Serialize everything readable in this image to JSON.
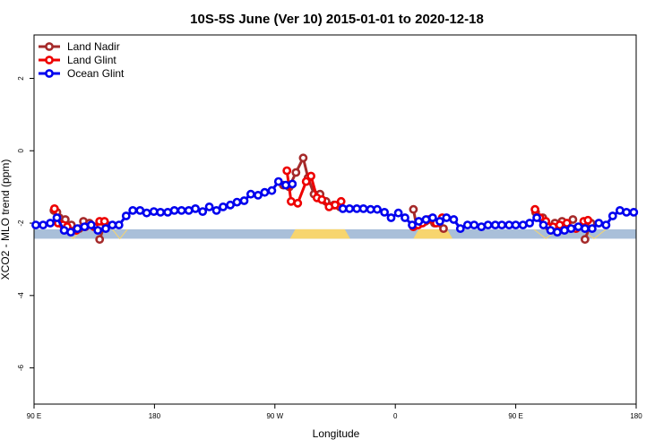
{
  "chart_data": {
    "type": "line",
    "title": "10S-5S June (Ver 10)   2015-01-01 to 2020-12-18",
    "xlabel": "Longitude",
    "ylabel": "XCO2 - MLO trend (ppm)",
    "xlim": [
      0,
      100
    ],
    "ylim": [
      -7,
      3.2
    ],
    "x_ticks": [
      {
        "x": 0,
        "label": "90 E"
      },
      {
        "x": 20,
        "label": "180"
      },
      {
        "x": 40,
        "label": "90 W"
      },
      {
        "x": 60,
        "label": "0"
      },
      {
        "x": 80,
        "label": "90 E"
      },
      {
        "x": 100,
        "label": "180"
      }
    ],
    "y_ticks": [
      2,
      0,
      -2,
      -4,
      -6
    ],
    "legend_position": "top-left",
    "background_band": {
      "y_center": -2.3,
      "half_height": 0.13,
      "ocean_color": "#a9bfd9",
      "land_color": "#f7d56e",
      "land_segments": [
        [
          42.5,
          52.5
        ],
        [
          63,
          69.5
        ]
      ],
      "lake_segments": [
        [
          5,
          8
        ],
        [
          13,
          15.5
        ],
        [
          83,
          87
        ],
        [
          91,
          95
        ]
      ]
    },
    "series": [
      {
        "name": "Land Nadir",
        "color": "#a52a2a",
        "segments": [
          [
            [
              3.3,
              -1.65
            ],
            [
              3.8,
              -1.7
            ],
            [
              4.2,
              -1.85
            ],
            [
              5.2,
              -1.9
            ],
            [
              6.2,
              -2.05
            ],
            [
              7.5,
              -2.15
            ],
            [
              8.2,
              -1.95
            ],
            [
              9.2,
              -2.0
            ]
          ],
          [
            [
              10.9,
              -2.45
            ],
            [
              11.8,
              -2.0
            ]
          ],
          [
            [
              41.4,
              -0.95
            ],
            [
              42.4,
              -1.0
            ],
            [
              43.5,
              -0.6
            ],
            [
              44.7,
              -0.2
            ],
            [
              45.5,
              -0.75
            ],
            [
              46.5,
              -1.2
            ],
            [
              47.5,
              -1.2
            ],
            [
              48.5,
              -1.4
            ],
            [
              49.8,
              -1.5
            ],
            [
              50.8,
              -1.55
            ]
          ],
          [
            [
              63.0,
              -1.62
            ],
            [
              63.5,
              -2.05
            ],
            [
              65.0,
              -1.95
            ],
            [
              66.5,
              -2.0
            ],
            [
              68.0,
              -2.15
            ]
          ],
          [
            [
              83.3,
              -1.7
            ],
            [
              84.5,
              -1.85
            ],
            [
              85.5,
              -2.1
            ],
            [
              86.5,
              -2.0
            ],
            [
              87.7,
              -1.95
            ],
            [
              88.6,
              -2.1
            ],
            [
              89.5,
              -1.9
            ]
          ],
          [
            [
              91.5,
              -2.45
            ],
            [
              92.5,
              -2.0
            ]
          ]
        ]
      },
      {
        "name": "Land Glint",
        "color": "#ee0000",
        "segments": [
          [
            [
              3.4,
              -1.6
            ],
            [
              4.0,
              -2.0
            ],
            [
              4.8,
              -2.05
            ],
            [
              5.5,
              -2.1
            ],
            [
              7.0,
              -2.2
            ],
            [
              8.5,
              -2.1
            ],
            [
              10.0,
              -2.1
            ]
          ],
          [
            [
              10.9,
              -1.95
            ],
            [
              11.7,
              -1.95
            ]
          ],
          [
            [
              42.0,
              -0.55
            ],
            [
              42.7,
              -1.4
            ],
            [
              43.8,
              -1.45
            ],
            [
              45.2,
              -0.85
            ],
            [
              46.0,
              -0.7
            ],
            [
              47.0,
              -1.3
            ],
            [
              47.8,
              -1.35
            ],
            [
              49.0,
              -1.55
            ],
            [
              50.0,
              -1.5
            ],
            [
              51.0,
              -1.4
            ]
          ],
          [
            [
              63.0,
              -2.1
            ],
            [
              63.8,
              -2.05
            ],
            [
              64.5,
              -2.0
            ],
            [
              65.5,
              -1.9
            ],
            [
              66.8,
              -2.0
            ],
            [
              67.8,
              -1.85
            ]
          ],
          [
            [
              83.2,
              -1.62
            ],
            [
              84.0,
              -1.85
            ],
            [
              85.0,
              -1.95
            ],
            [
              86.2,
              -2.1
            ],
            [
              87.3,
              -2.05
            ],
            [
              88.5,
              -2.0
            ],
            [
              90.0,
              -2.15
            ]
          ],
          [
            [
              91.3,
              -1.95
            ],
            [
              92.0,
              -1.92
            ]
          ]
        ]
      },
      {
        "name": "Ocean Glint",
        "color": "#0000ee",
        "segments": [
          [
            [
              0.3,
              -2.05
            ],
            [
              1.5,
              -2.05
            ],
            [
              2.7,
              -2.0
            ],
            [
              3.8,
              -1.85
            ],
            [
              5.0,
              -2.2
            ],
            [
              6.1,
              -2.25
            ],
            [
              7.2,
              -2.15
            ],
            [
              8.4,
              -2.1
            ],
            [
              9.5,
              -2.05
            ],
            [
              10.6,
              -2.2
            ],
            [
              11.9,
              -2.15
            ],
            [
              13.0,
              -2.05
            ],
            [
              14.1,
              -2.05
            ],
            [
              15.3,
              -1.8
            ],
            [
              16.4,
              -1.65
            ],
            [
              17.6,
              -1.65
            ],
            [
              18.7,
              -1.72
            ],
            [
              19.9,
              -1.68
            ],
            [
              21.0,
              -1.7
            ],
            [
              22.2,
              -1.7
            ],
            [
              23.3,
              -1.65
            ],
            [
              24.5,
              -1.65
            ],
            [
              25.7,
              -1.65
            ],
            [
              26.8,
              -1.6
            ],
            [
              28.0,
              -1.68
            ],
            [
              29.1,
              -1.55
            ],
            [
              30.3,
              -1.65
            ],
            [
              31.4,
              -1.55
            ],
            [
              32.6,
              -1.5
            ],
            [
              33.7,
              -1.42
            ],
            [
              34.9,
              -1.38
            ],
            [
              36.0,
              -1.2
            ],
            [
              37.2,
              -1.23
            ],
            [
              38.3,
              -1.15
            ],
            [
              39.5,
              -1.1
            ],
            [
              40.6,
              -0.85
            ],
            [
              41.8,
              -0.95
            ],
            [
              42.9,
              -0.92
            ]
          ],
          [
            [
              51.3,
              -1.6
            ],
            [
              52.4,
              -1.6
            ],
            [
              53.6,
              -1.6
            ],
            [
              54.7,
              -1.6
            ],
            [
              55.9,
              -1.62
            ],
            [
              57.0,
              -1.62
            ],
            [
              58.2,
              -1.7
            ],
            [
              59.3,
              -1.85
            ],
            [
              60.5,
              -1.72
            ],
            [
              61.6,
              -1.85
            ],
            [
              62.8,
              -2.05
            ],
            [
              63.9,
              -1.95
            ],
            [
              65.1,
              -1.9
            ],
            [
              66.2,
              -1.85
            ],
            [
              67.4,
              -1.95
            ],
            [
              68.5,
              -1.85
            ],
            [
              69.7,
              -1.9
            ],
            [
              70.8,
              -2.15
            ],
            [
              72.0,
              -2.05
            ],
            [
              73.1,
              -2.05
            ],
            [
              74.3,
              -2.1
            ],
            [
              75.4,
              -2.05
            ],
            [
              76.6,
              -2.05
            ],
            [
              77.7,
              -2.05
            ],
            [
              78.9,
              -2.05
            ],
            [
              80.0,
              -2.05
            ],
            [
              81.2,
              -2.05
            ],
            [
              82.3,
              -2.0
            ],
            [
              83.5,
              -1.85
            ],
            [
              84.6,
              -2.05
            ],
            [
              85.8,
              -2.2
            ],
            [
              86.9,
              -2.25
            ],
            [
              88.1,
              -2.2
            ],
            [
              89.2,
              -2.15
            ],
            [
              90.4,
              -2.1
            ],
            [
              91.5,
              -2.15
            ],
            [
              92.7,
              -2.15
            ],
            [
              93.8,
              -2.0
            ],
            [
              95.0,
              -2.05
            ],
            [
              96.1,
              -1.8
            ],
            [
              97.3,
              -1.65
            ],
            [
              98.4,
              -1.7
            ],
            [
              99.6,
              -1.7
            ]
          ]
        ]
      }
    ]
  }
}
